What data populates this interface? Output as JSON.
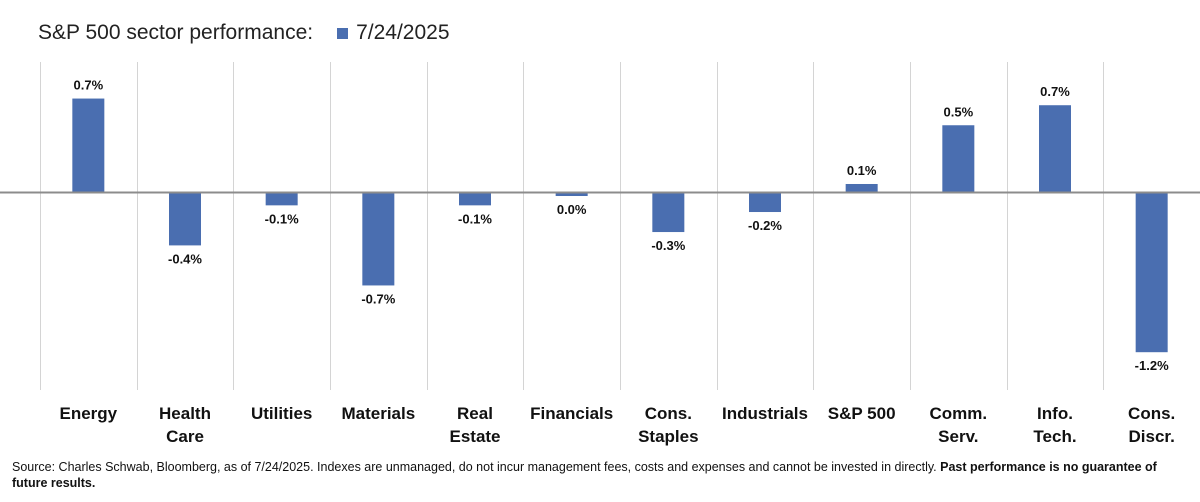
{
  "chart_data": {
    "type": "bar",
    "title": "S&P 500 sector performance:",
    "series": [
      {
        "name": "7/24/2025",
        "color": "#4a6eb0",
        "values": [
          0.7,
          -0.4,
          -0.1,
          -0.7,
          -0.1,
          -0.03,
          -0.3,
          -0.15,
          0.06,
          0.5,
          0.65,
          -1.2
        ],
        "labels": [
          "0.7%",
          "-0.4%",
          "-0.1%",
          "-0.7%",
          "-0.1%",
          "0.0%",
          "-0.3%",
          "-0.2%",
          "0.1%",
          "0.5%",
          "0.7%",
          "-1.2%"
        ]
      }
    ],
    "categories": [
      [
        "Energy"
      ],
      [
        "Health",
        "Care"
      ],
      [
        "Utilities"
      ],
      [
        "Materials"
      ],
      [
        "Real",
        "Estate"
      ],
      [
        "Financials"
      ],
      [
        "Cons.",
        "Staples"
      ],
      [
        "Industrials"
      ],
      [
        "S&P 500"
      ],
      [
        "Comm.",
        "Serv."
      ],
      [
        "Info.",
        "Tech."
      ],
      [
        "Cons.",
        "Discr."
      ]
    ],
    "xlabel": "",
    "ylabel": "",
    "ylim": [
      -1.5,
      1.0
    ],
    "grid": "vertical separators",
    "legend": "top"
  },
  "source": {
    "text": "Source: Charles Schwab, Bloomberg, as of 7/24/2025. Indexes are unmanaged, do not incur management fees, costs and expenses and cannot be invested in directly.",
    "bold_text": "Past performance is no guarantee of future results."
  }
}
